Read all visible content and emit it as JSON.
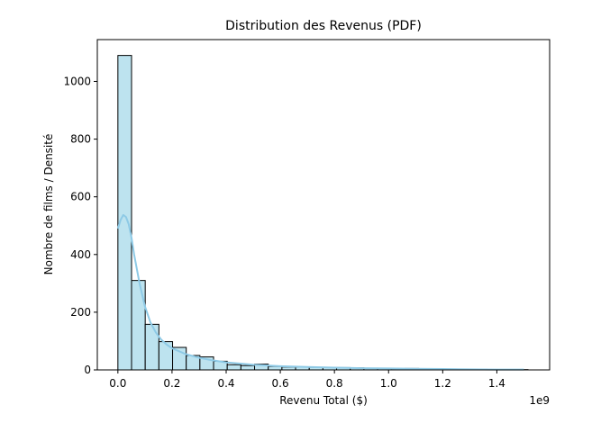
{
  "chart_data": {
    "type": "bar",
    "title": "Distribution des Revenus (PDF)",
    "xlabel": "Revenu Total ($)",
    "ylabel": "Nombre de films / Densité",
    "x_offset_label": "1e9",
    "xlim": [
      -0.076,
      1.595
    ],
    "ylim": [
      0,
      1145
    ],
    "x_ticks": [
      0.0,
      0.2,
      0.4,
      0.6,
      0.8,
      1.0,
      1.2,
      1.4
    ],
    "x_tick_labels": [
      "0.0",
      "0.2",
      "0.4",
      "0.6",
      "0.8",
      "1.0",
      "1.2",
      "1.4"
    ],
    "y_ticks": [
      0,
      200,
      400,
      600,
      800,
      1000
    ],
    "y_tick_labels": [
      "0",
      "200",
      "400",
      "600",
      "800",
      "1000"
    ],
    "bin_start": 0.0,
    "bin_width": 0.0505,
    "counts": [
      1090,
      310,
      158,
      98,
      78,
      50,
      45,
      30,
      18,
      15,
      20,
      12,
      10,
      10,
      9,
      8,
      8,
      7,
      6,
      6,
      4,
      5,
      3,
      3,
      2,
      2,
      2,
      1,
      1,
      1
    ],
    "kde": {
      "x": [
        0.0,
        0.01,
        0.02,
        0.03,
        0.04,
        0.05,
        0.06,
        0.08,
        0.1,
        0.12,
        0.14,
        0.16,
        0.18,
        0.2,
        0.25,
        0.3,
        0.35,
        0.4,
        0.5,
        0.6,
        0.7,
        0.8,
        0.9,
        1.0,
        1.1,
        1.2,
        1.3,
        1.4,
        1.5
      ],
      "y": [
        490,
        520,
        537,
        530,
        505,
        460,
        400,
        300,
        220,
        165,
        130,
        105,
        88,
        75,
        55,
        42,
        33,
        26,
        18,
        13,
        10,
        8,
        6,
        5,
        4,
        3,
        2,
        1,
        1
      ]
    },
    "colors": {
      "bar_fill": "#bde3ef",
      "bar_edge": "#000000",
      "kde_line": "#8ecae6",
      "axis": "#000000"
    },
    "grid": false,
    "legend": "none"
  }
}
